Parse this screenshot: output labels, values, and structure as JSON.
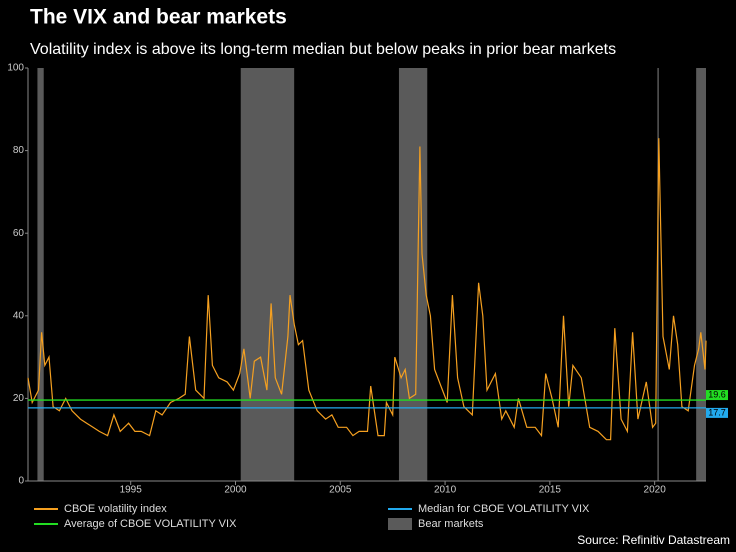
{
  "chart_data": {
    "type": "line",
    "title": "The VIX and bear markets",
    "subtitle": "Volatility index is above its long-term median but below peaks in prior bear markets",
    "source": "Source: Refinitiv Datastream",
    "xlim": [
      1990.1,
      2022.45
    ],
    "xticks": [
      1995,
      2000,
      2005,
      2010,
      2015,
      2020
    ],
    "ylim": [
      0,
      100
    ],
    "yticks": [
      0,
      20,
      40,
      60,
      80,
      100
    ],
    "series": [
      {
        "name": "CBOE volatility index",
        "color": "#f5a020",
        "x": [
          1990.1,
          1990.3,
          1990.6,
          1990.75,
          1990.9,
          1991.1,
          1991.3,
          1991.6,
          1991.9,
          1992.2,
          1992.6,
          1992.9,
          1993.2,
          1993.5,
          1993.9,
          1994.2,
          1994.5,
          1994.9,
          1995.2,
          1995.5,
          1995.9,
          1996.2,
          1996.5,
          1996.9,
          1997.3,
          1997.6,
          1997.8,
          1998.1,
          1998.5,
          1998.7,
          1998.9,
          1999.2,
          1999.6,
          1999.9,
          2000.2,
          2000.4,
          2000.7,
          2000.9,
          2001.2,
          2001.5,
          2001.7,
          2001.9,
          2002.2,
          2002.5,
          2002.6,
          2002.8,
          2003.0,
          2003.2,
          2003.5,
          2003.9,
          2004.3,
          2004.6,
          2004.9,
          2005.3,
          2005.6,
          2005.9,
          2006.3,
          2006.45,
          2006.8,
          2007.1,
          2007.2,
          2007.5,
          2007.6,
          2007.9,
          2008.1,
          2008.3,
          2008.6,
          2008.8,
          2008.9,
          2009.1,
          2009.3,
          2009.5,
          2009.8,
          2010.1,
          2010.35,
          2010.6,
          2010.9,
          2011.3,
          2011.6,
          2011.8,
          2012.0,
          2012.4,
          2012.7,
          2012.9,
          2013.3,
          2013.5,
          2013.9,
          2014.3,
          2014.6,
          2014.8,
          2015.1,
          2015.4,
          2015.65,
          2015.9,
          2016.1,
          2016.5,
          2016.9,
          2017.3,
          2017.7,
          2017.9,
          2018.1,
          2018.4,
          2018.7,
          2018.95,
          2019.2,
          2019.6,
          2019.9,
          2020.05,
          2020.2,
          2020.4,
          2020.7,
          2020.9,
          2021.1,
          2021.3,
          2021.6,
          2021.9,
          2022.1,
          2022.2,
          2022.4,
          2022.45
        ],
        "values": [
          25,
          19,
          22,
          36,
          28,
          30,
          18,
          17,
          20,
          17,
          15,
          14,
          13,
          12,
          11,
          16,
          12,
          14,
          12,
          12,
          11,
          17,
          16,
          19,
          20,
          21,
          35,
          22,
          20,
          45,
          28,
          25,
          24,
          22,
          26,
          32,
          20,
          29,
          30,
          22,
          43,
          25,
          21,
          35,
          45,
          38,
          33,
          34,
          22,
          17,
          15,
          16,
          13,
          13,
          11,
          12,
          12,
          23,
          11,
          11,
          19,
          16,
          30,
          25,
          27,
          20,
          21,
          81,
          55,
          45,
          40,
          27,
          23,
          19,
          45,
          25,
          18,
          16,
          48,
          40,
          22,
          26,
          15,
          17,
          13,
          20,
          13,
          13,
          11,
          26,
          20,
          13,
          40,
          18,
          28,
          25,
          13,
          12,
          10,
          10,
          37,
          15,
          12,
          36,
          15,
          24,
          13,
          14,
          83,
          35,
          27,
          40,
          33,
          18,
          17,
          28,
          32,
          36,
          27,
          34
        ]
      }
    ],
    "reference_lines": [
      {
        "name": "Average of CBOE VOLATILITY VIX",
        "value": 19.6,
        "color": "#22dd22"
      },
      {
        "name": "Median for CBOE VOLATILITY VIX",
        "value": 17.7,
        "color": "#22aaee"
      }
    ],
    "bear_markets": {
      "name": "Bear markets",
      "color": "#5a5a5a",
      "ranges": [
        [
          1990.55,
          1990.85
        ],
        [
          2000.25,
          2002.8
        ],
        [
          2007.8,
          2009.15
        ],
        [
          2020.13,
          2020.2
        ],
        [
          2021.98,
          2022.45
        ]
      ]
    }
  }
}
